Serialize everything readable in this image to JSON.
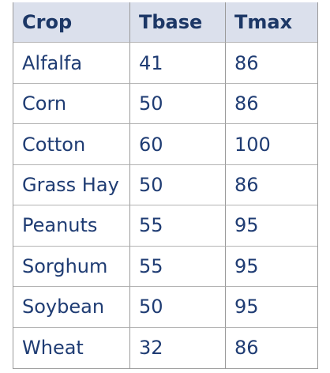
{
  "table": {
    "headers": [
      "Crop",
      "Tbase",
      "Tmax"
    ],
    "rows": [
      [
        "Alfalfa",
        "41",
        "86"
      ],
      [
        "Corn",
        "50",
        "86"
      ],
      [
        "Cotton",
        "60",
        "100"
      ],
      [
        "Grass Hay",
        "50",
        "86"
      ],
      [
        "Peanuts",
        "55",
        "95"
      ],
      [
        "Sorghum",
        "55",
        "95"
      ],
      [
        "Soybean",
        "50",
        "95"
      ],
      [
        "Wheat",
        "32",
        "86"
      ]
    ]
  }
}
